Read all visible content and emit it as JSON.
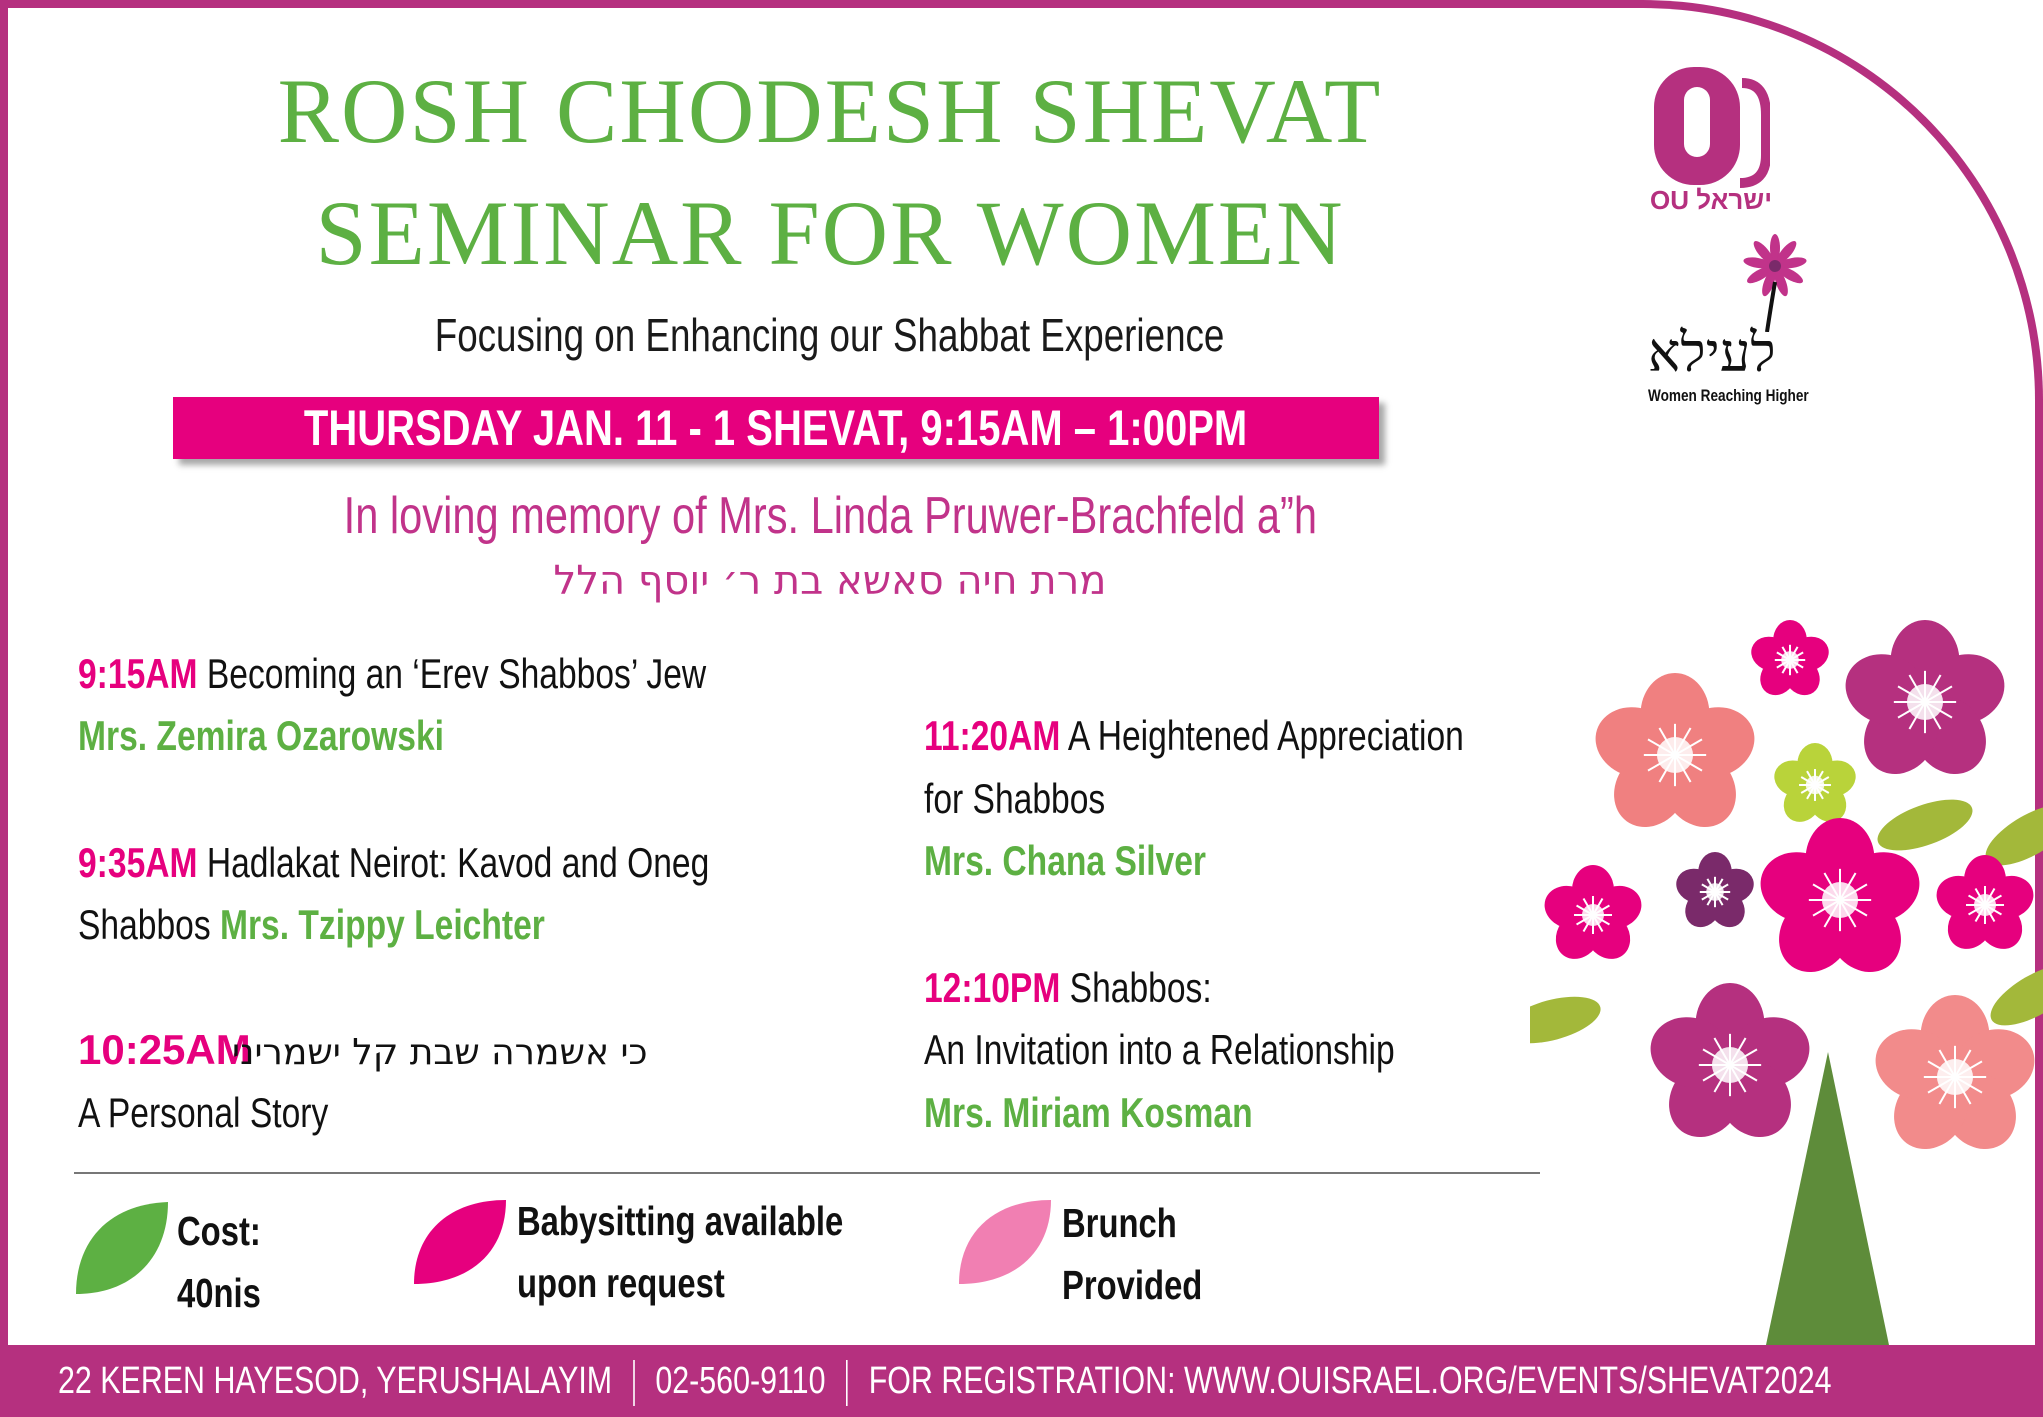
{
  "header": {
    "title_line1": "ROSH CHODESH SHEVAT",
    "title_line2": "SEMINAR FOR WOMEN",
    "subtitle": "Focusing on Enhancing our Shabbat Experience",
    "date_banner": "THURSDAY JAN. 11  - 1 SHEVAT, 9:15AM – 1:00PM",
    "memorial": "In loving memory of Mrs. Linda Pruwer-Brachfeld a”h",
    "memorial_hebrew": "מרת חיה סאשא בת ר׳ יוסף הלל"
  },
  "logos": {
    "ou_text": "OU ישראל",
    "leila_hebrew": "לעילא",
    "leila_tagline": "Women Reaching Higher"
  },
  "schedule": {
    "left": [
      {
        "time": "9:15AM",
        "title": "Becoming an ‘Erev Shabbos’ Jew",
        "speaker": "Mrs. Zemira Ozarowski"
      },
      {
        "time": "9:35AM",
        "title": " Hadlakat Neirot: Kavod and Oneg",
        "title_cont": "Shabbos",
        "speaker": "Mrs. Tzippy Leichter"
      },
      {
        "time": "10:25AM",
        "title": "כי אשמרה שבת קל ישמריני",
        "title_cont": "A Personal Story"
      }
    ],
    "right": [
      {
        "time": "11:20AM",
        "title": "A Heightened Appreciation",
        "title_cont": "for Shabbos",
        "speaker": "Mrs. Chana Silver"
      },
      {
        "time": "12:10PM",
        "title": "Shabbos:",
        "title_cont": "An Invitation into a Relationship",
        "speaker": "Mrs. Miriam Kosman"
      }
    ]
  },
  "legend": [
    {
      "line1": "Cost:",
      "line2": "40nis",
      "color": "#5db043"
    },
    {
      "line1": "Babysitting available",
      "line2": "upon request",
      "color": "#e6007e"
    },
    {
      "line1": "Brunch",
      "line2": "Provided",
      "color": "#f17fb2"
    }
  ],
  "footer": {
    "address": "22 KEREN HAYESOD, YERUSHALAYIM",
    "phone": "02-560-9110",
    "registration": "FOR REGISTRATION: WWW.OUISRAEL.ORG/EVENTS/SHEVAT2024"
  },
  "colors": {
    "brand_magenta": "#b5307f",
    "hot_pink": "#e6007e",
    "green": "#5db043",
    "flower_colors": [
      "#f08080",
      "#b5307f",
      "#e6007e",
      "#b9d33a",
      "#7a2a6a",
      "#f28b8b"
    ]
  }
}
